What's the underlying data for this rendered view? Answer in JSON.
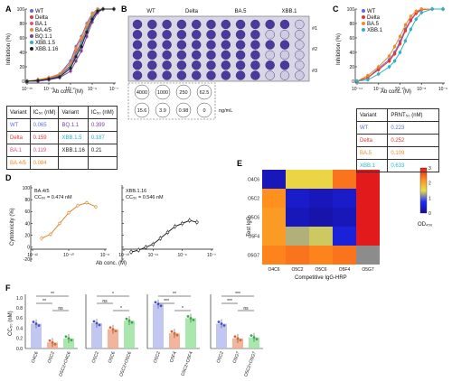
{
  "panel_letters": [
    "A",
    "B",
    "C",
    "D",
    "E",
    "F"
  ],
  "colors": {
    "WT": "#5b6ee1",
    "Delta": "#e53935",
    "BA.1": "#e8527a",
    "BA.4/5": "#ef8a2c",
    "BQ.1.1": "#7b3fa0",
    "XBB.1.5": "#2bb3c6",
    "XBB.1.16": "#222222",
    "BA.5": "#ef8a2c",
    "XBB.1": "#2bb3c6"
  },
  "panelA": {
    "legend": [
      "WT",
      "Delta",
      "BA.1",
      "BA.4/5",
      "BQ.1.1",
      "XBB.1.5",
      "XBB.1.16"
    ],
    "ylabel": "Inhibition (%)",
    "xlabel": "Ab conc. (M)",
    "yticks": [
      "100",
      "80",
      "60",
      "40",
      "20",
      "0"
    ],
    "xticks": [
      "10⁻¹⁵",
      "10⁻¹³",
      "10⁻¹¹",
      "10⁻⁹",
      "10⁻⁷"
    ],
    "table_header": [
      "Variant",
      "IC₅₀ (nM)",
      "Variant",
      "IC₅₀ (nM)"
    ],
    "table_rows": [
      [
        "WT",
        "0.065",
        "BQ.1.1",
        "0.399"
      ],
      [
        "Delta",
        "0.159",
        "XBB.1.5",
        "0.187"
      ],
      [
        "BA.1",
        "0.119",
        "XBB.1.16",
        "0.21"
      ],
      [
        "BA.4/5",
        "0.084",
        "",
        ""
      ]
    ]
  },
  "panelB": {
    "labels": [
      "WT",
      "Delta",
      "BA.5",
      "XBB.1"
    ],
    "rows": [
      "#1",
      "#2",
      "#3"
    ],
    "conc_top": [
      "4000",
      "1000",
      "250",
      "62.5"
    ],
    "conc_bottom": [
      "15.6",
      "3.9",
      "0.98",
      "0"
    ],
    "unit": "ng/mL"
  },
  "panelC": {
    "legend": [
      "WT",
      "Delta",
      "BA.5",
      "XBB.1"
    ],
    "ylabel": "Inhibition (%)",
    "xlabel": "Ab conc. (M)",
    "yticks": [
      "100",
      "80",
      "60",
      "40",
      "20",
      "0"
    ],
    "xticks": [
      "10⁻¹⁴",
      "10⁻¹²",
      "10⁻¹⁰",
      "10⁻⁸",
      "10⁻⁶"
    ],
    "table_header": [
      "Variant",
      "PRNT₅₀ (nM)"
    ],
    "table_rows": [
      [
        "WT",
        "0.223"
      ],
      [
        "Delta",
        "0.252"
      ],
      [
        "BA.5",
        "0.109"
      ],
      [
        "XBB.1",
        "0.633"
      ]
    ]
  },
  "panelD": {
    "ylabel": "Cytotoxicity (%)",
    "xlabel": "Ab conc. (M)",
    "yticks": [
      "100",
      "80",
      "60",
      "40",
      "20",
      "0",
      "-20"
    ],
    "left": {
      "title": "BA.4/5",
      "cc": "CC₅₀ = 0.474 nM"
    },
    "right": {
      "title": "XBB.1.16",
      "cc": "CC₅₀ = 0.546  nM"
    },
    "xticks_left": [
      "10⁻¹²",
      "10⁻¹⁰",
      "10⁻⁸"
    ],
    "xticks_right": [
      "10⁻¹³",
      "10⁻¹¹",
      "10⁻⁹",
      "10⁻⁷"
    ]
  },
  "panelE": {
    "ylabel": "Test IgG",
    "xlabel": "Competitive IgG-HRP",
    "legend_title": "OD₄₅₀",
    "legend_ticks": [
      "3",
      "2",
      "1",
      "0"
    ]
  },
  "panelF": {
    "ylabel": "CC₅₀ (nM)",
    "yticks": [
      "1.0",
      "0.8",
      "0.6",
      "0.4",
      "0.2",
      "0.0"
    ]
  },
  "chart_data": [
    {
      "panel": "A",
      "type": "line",
      "title": "",
      "xlabel": "Ab conc. (M)",
      "ylabel": "Inhibition (%)",
      "log_x": true,
      "xlim": [
        -15,
        -7
      ],
      "ylim": [
        0,
        100
      ],
      "x_log10": [
        -15,
        -14,
        -13,
        -12,
        -11,
        -10.5,
        -10,
        -9.5,
        -9,
        -8.5,
        -8,
        -7
      ],
      "series": [
        {
          "name": "WT",
          "values": [
            0,
            2,
            5,
            10,
            28,
            48,
            62,
            80,
            94,
            100,
            100,
            100
          ]
        },
        {
          "name": "Delta",
          "values": [
            0,
            1,
            3,
            8,
            20,
            38,
            52,
            70,
            88,
            98,
            100,
            100
          ]
        },
        {
          "name": "BA.1",
          "values": [
            0,
            2,
            4,
            9,
            22,
            40,
            55,
            74,
            90,
            99,
            100,
            100
          ]
        },
        {
          "name": "BA.4/5",
          "values": [
            0,
            2,
            5,
            10,
            25,
            45,
            60,
            78,
            93,
            100,
            100,
            100
          ]
        },
        {
          "name": "BQ.1.1",
          "values": [
            0,
            0,
            2,
            5,
            14,
            28,
            42,
            62,
            82,
            95,
            100,
            100
          ]
        },
        {
          "name": "XBB.1.5",
          "values": [
            0,
            1,
            3,
            7,
            20,
            36,
            52,
            70,
            88,
            98,
            100,
            100
          ]
        },
        {
          "name": "XBB.1.16",
          "values": [
            0,
            1,
            3,
            6,
            18,
            34,
            48,
            68,
            86,
            97,
            100,
            100
          ]
        }
      ]
    },
    {
      "panel": "C",
      "type": "line",
      "title": "",
      "xlabel": "Ab conc. (M)",
      "ylabel": "Inhibition (%)",
      "log_x": true,
      "xlim": [
        -14,
        -6
      ],
      "ylim": [
        0,
        100
      ],
      "x_log10": [
        -14,
        -13,
        -12,
        -11,
        -10.5,
        -10,
        -9.5,
        -9,
        -8.5,
        -8,
        -7,
        -6
      ],
      "series": [
        {
          "name": "WT",
          "values": [
            0,
            5,
            18,
            30,
            40,
            55,
            72,
            85,
            95,
            100,
            100,
            100
          ]
        },
        {
          "name": "Delta",
          "values": [
            0,
            5,
            16,
            28,
            38,
            52,
            70,
            84,
            94,
            99,
            100,
            100
          ]
        },
        {
          "name": "BA.5",
          "values": [
            0,
            8,
            20,
            35,
            48,
            62,
            78,
            90,
            97,
            100,
            100,
            100
          ]
        },
        {
          "name": "XBB.1",
          "values": [
            0,
            2,
            10,
            20,
            28,
            40,
            56,
            72,
            86,
            95,
            100,
            100
          ]
        }
      ]
    },
    {
      "panel": "D-left",
      "type": "line",
      "title": "BA.4/5",
      "xlabel": "Ab conc. (M)",
      "ylabel": "Cytotoxicity (%)",
      "log_x": true,
      "xlim": [
        -12,
        -8
      ],
      "ylim": [
        -20,
        100
      ],
      "x_log10": [
        -11.5,
        -11,
        -10.5,
        -10,
        -9.5,
        -9,
        -8.5
      ],
      "series": [
        {
          "name": "BA.4/5",
          "values": [
            15,
            22,
            40,
            58,
            70,
            75,
            68
          ]
        }
      ]
    },
    {
      "panel": "D-right",
      "type": "line",
      "title": "XBB.1.16",
      "xlabel": "Ab conc. (M)",
      "ylabel": "",
      "log_x": true,
      "xlim": [
        -13,
        -7
      ],
      "ylim": [
        -20,
        100
      ],
      "x_log10": [
        -12.5,
        -12,
        -11.5,
        -11,
        -10.5,
        -10,
        -9.5,
        -9,
        -8.5,
        -8
      ],
      "series": [
        {
          "name": "XBB.1.16",
          "values": [
            -8,
            -5,
            0,
            5,
            15,
            25,
            35,
            40,
            45,
            42
          ]
        }
      ]
    },
    {
      "panel": "E",
      "type": "heatmap",
      "title": "",
      "xlabel": "Competitive IgG-HRP",
      "ylabel": "Test IgG",
      "x": [
        "O4C6",
        "O5C2",
        "O5C6",
        "O5F4",
        "O5G7"
      ],
      "y": [
        "O4C6",
        "O5C2",
        "O5C6",
        "O5F4",
        "O5G7"
      ],
      "values": [
        [
          0.3,
          1.6,
          1.6,
          2.4,
          3.2
        ],
        [
          2.2,
          0.4,
          0.3,
          0.4,
          3.3
        ],
        [
          2.1,
          0.3,
          0.2,
          0.3,
          3.2
        ],
        [
          2.1,
          1.3,
          1.4,
          0.5,
          3.2
        ],
        [
          2.3,
          2.4,
          2.3,
          2.4,
          null
        ]
      ],
      "vmin": 0,
      "vmax": 3
    },
    {
      "panel": "F",
      "type": "bar",
      "title": "",
      "xlabel": "",
      "ylabel": "CC₅₀ (nM)",
      "ylim": [
        0,
        1.0
      ],
      "groups": [
        {
          "categories": [
            "O4C6",
            "O5C2",
            "O5C2+O4C6"
          ],
          "values": [
            0.49,
            0.12,
            0.2
          ],
          "sig": [
            "**",
            "**",
            "ns"
          ]
        },
        {
          "categories": [
            "O5C2",
            "O5C6",
            "O5C2+O5C6"
          ],
          "values": [
            0.5,
            0.38,
            0.55
          ],
          "sig": [
            "*",
            "ns",
            "*"
          ]
        },
        {
          "categories": [
            "O5C2",
            "O5F4",
            "O5C2+O5F4"
          ],
          "values": [
            0.88,
            0.3,
            0.6
          ],
          "sig": [
            "**",
            "***",
            "*"
          ]
        },
        {
          "categories": [
            "O5C2",
            "O5G7",
            "O5C2+O5G7"
          ],
          "values": [
            0.49,
            0.2,
            0.22
          ],
          "sig": [
            "***",
            "***",
            "ns"
          ]
        }
      ]
    }
  ]
}
